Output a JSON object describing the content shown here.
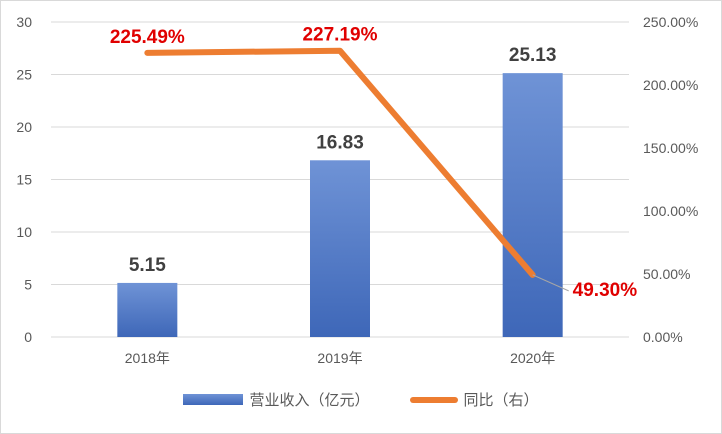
{
  "chart_data": {
    "type": "bar",
    "categories": [
      "2018年",
      "2019年",
      "2020年"
    ],
    "series": [
      {
        "name": "营业收入（亿元）",
        "type": "bar",
        "axis": "left",
        "values": [
          5.15,
          16.83,
          25.13
        ],
        "labels": [
          "5.15",
          "16.83",
          "25.13"
        ]
      },
      {
        "name": "同比（右）",
        "type": "line",
        "axis": "right",
        "values": [
          225.49,
          227.19,
          49.3
        ],
        "labels": [
          "225.49%",
          "227.19%",
          "49.30%"
        ]
      }
    ],
    "yaxis_left": {
      "range": [
        0,
        30
      ],
      "ticks": [
        "0",
        "5",
        "10",
        "15",
        "20",
        "25",
        "30"
      ]
    },
    "yaxis_right": {
      "range": [
        0,
        250
      ],
      "ticks": [
        "0.00%",
        "50.00%",
        "100.00%",
        "150.00%",
        "200.00%",
        "250.00%"
      ]
    },
    "grid": true,
    "legend_position": "bottom",
    "colors": {
      "bar": "#4472c4",
      "line": "#ed7d31",
      "line_label": "#e00000",
      "grid": "#d9d9d9"
    }
  }
}
